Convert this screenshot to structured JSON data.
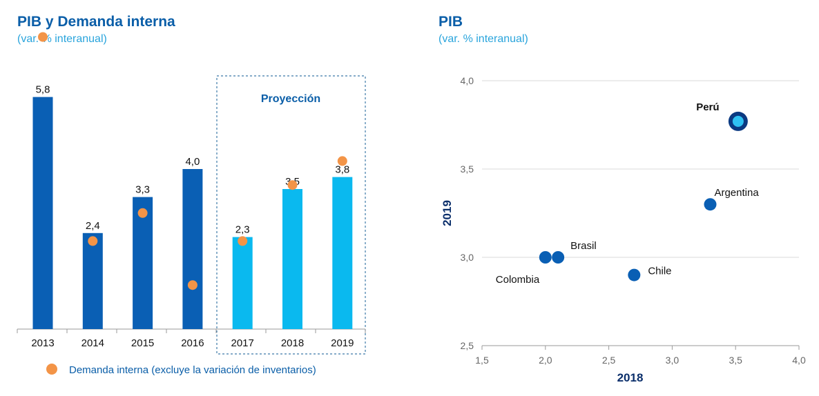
{
  "colors": {
    "bar_dark": "#0a5fb4",
    "bar_light": "#0ab9ef",
    "dot_orange": "#f39447",
    "title_blue": "#0a5ea8",
    "subtitle_blue": "#29a4dc",
    "axis_navy": "#0b2f6b",
    "peru_light": "#2fc2f3",
    "peru_ring": "#0b3a82"
  },
  "left": {
    "title": "PIB y Demanda interna",
    "subtitle": "(var. % interanual)",
    "projection_label": "Proyección",
    "legend_label": "Demanda interna (excluye la variación de inventarios)"
  },
  "right": {
    "title": "PIB",
    "subtitle": "(var. % interanual)"
  },
  "chart_data": [
    {
      "type": "bar",
      "title": "PIB y Demanda interna",
      "subtitle": "(var. % interanual)",
      "categories": [
        "2013",
        "2014",
        "2015",
        "2016",
        "2017",
        "2018",
        "2019"
      ],
      "series": [
        {
          "values": [
            5.8,
            2.4,
            3.3,
            4.0,
            2.3,
            3.5,
            3.8
          ],
          "labels": [
            "5,8",
            "2,4",
            "3,3",
            "4,0",
            "2,3",
            "3,5",
            "3,8"
          ],
          "projected": [
            false,
            false,
            false,
            false,
            true,
            true,
            true
          ]
        },
        {
          "name": "Demanda interna (excluye la variación de inventarios)",
          "type": "scatter",
          "values": [
            7.3,
            2.2,
            2.9,
            1.1,
            2.2,
            3.6,
            4.2
          ]
        }
      ],
      "annotations": [
        "Proyección"
      ],
      "ylim": [
        0,
        8
      ]
    },
    {
      "type": "scatter",
      "title": "PIB",
      "subtitle": "(var. % interanual)",
      "xlabel": "2018",
      "ylabel": "2019",
      "xlim": [
        1.5,
        4.0
      ],
      "ylim": [
        2.5,
        4.0
      ],
      "x_ticks": [
        "1,5",
        "2,0",
        "2,5",
        "3,0",
        "3,5",
        "4,0"
      ],
      "y_ticks": [
        "2,5",
        "3,0",
        "3,5",
        "4,0"
      ],
      "grid": true,
      "points": [
        {
          "label": "Perú",
          "x": 3.52,
          "y": 3.77,
          "highlight": true
        },
        {
          "label": "Argentina",
          "x": 3.3,
          "y": 3.3
        },
        {
          "label": "Brasil",
          "x": 2.1,
          "y": 3.0
        },
        {
          "label": "Colombia",
          "x": 2.0,
          "y": 3.0
        },
        {
          "label": "Chile",
          "x": 2.7,
          "y": 2.9
        }
      ]
    }
  ]
}
